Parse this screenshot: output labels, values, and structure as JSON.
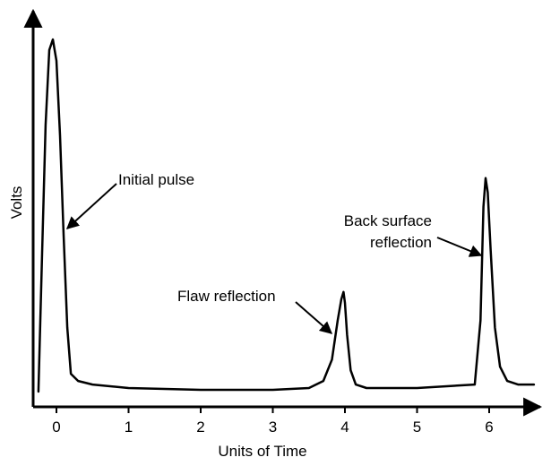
{
  "chart_data": {
    "type": "line",
    "xlabel": "Units of Time",
    "ylabel": "Volts",
    "xlim": [
      -0.3,
      6.65
    ],
    "ylim": [
      0,
      1
    ],
    "x_ticks": [
      "0",
      "1",
      "2",
      "3",
      "4",
      "5",
      "6"
    ],
    "grid": false,
    "series": [
      {
        "x": [
          -0.25,
          -0.2,
          -0.15,
          -0.1,
          -0.05,
          0.0,
          0.05,
          0.1,
          0.15,
          0.2,
          0.3,
          0.5,
          1.0,
          2.0,
          3.0,
          3.5,
          3.7,
          3.82,
          3.9,
          3.95,
          3.98,
          4.0,
          4.03,
          4.08,
          4.15,
          4.3,
          5.0,
          5.8,
          5.88,
          5.92,
          5.95,
          5.98,
          6.02,
          6.08,
          6.15,
          6.25,
          6.4,
          6.62
        ],
        "y": [
          0.0,
          0.38,
          0.75,
          0.96,
          0.99,
          0.93,
          0.72,
          0.44,
          0.18,
          0.05,
          0.03,
          0.02,
          0.01,
          0.005,
          0.005,
          0.01,
          0.03,
          0.09,
          0.2,
          0.26,
          0.28,
          0.25,
          0.16,
          0.06,
          0.02,
          0.01,
          0.01,
          0.02,
          0.2,
          0.52,
          0.6,
          0.56,
          0.4,
          0.18,
          0.07,
          0.03,
          0.02,
          0.02
        ]
      }
    ],
    "annotations": [
      {
        "text": "Initial pulse",
        "x": 0.15,
        "y": 0.44
      },
      {
        "text": "Flaw reflection",
        "x": 3.93,
        "y": 0.15
      },
      {
        "text": "Back surface\nreflection",
        "x": 5.91,
        "y": 0.39
      }
    ]
  }
}
